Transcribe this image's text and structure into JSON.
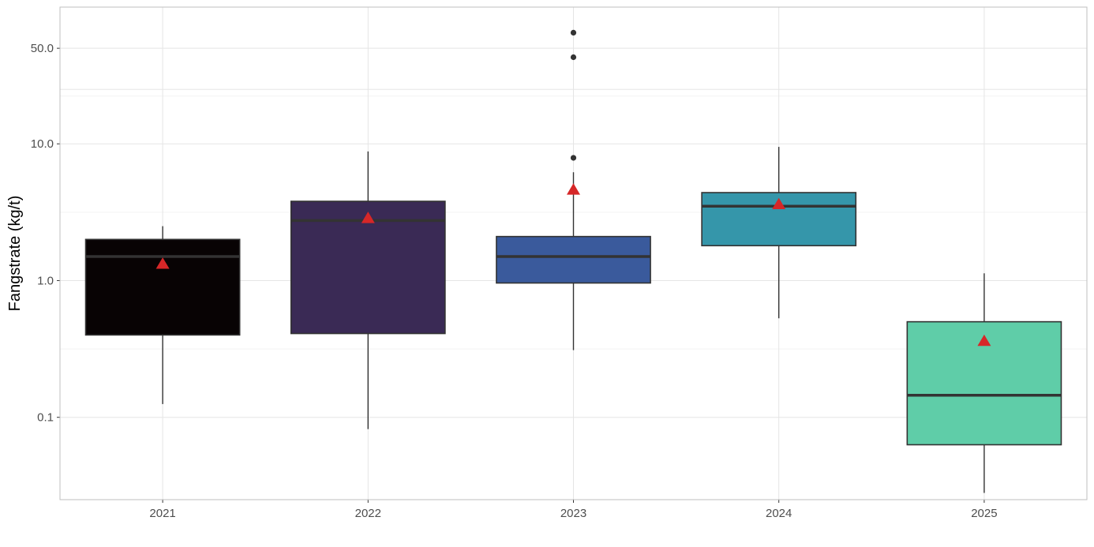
{
  "chart_data": {
    "type": "boxplot",
    "title": "",
    "xlabel": "",
    "ylabel": "Fangstrate (kg/t)",
    "y_scale": "log10",
    "ylim": [
      0.025,
      100
    ],
    "y_ticks": [
      0.1,
      1.0,
      10.0,
      50.0
    ],
    "y_tick_labels": [
      "0.1",
      "1.0",
      "10.0",
      "50.0"
    ],
    "grid": true,
    "legend": "none",
    "categories": [
      "2021",
      "2022",
      "2023",
      "2024",
      "2025"
    ],
    "boxes": [
      {
        "category": "2021",
        "fill": "#080304",
        "whisker_low": 0.125,
        "q1": 0.4,
        "median": 1.5,
        "q3": 2.0,
        "whisker_high": 2.5,
        "mean": 1.32,
        "outliers": []
      },
      {
        "category": "2022",
        "fill": "#3a2a55",
        "whisker_low": 0.082,
        "q1": 0.41,
        "median": 2.75,
        "q3": 3.8,
        "whisker_high": 8.8,
        "mean": 2.85,
        "outliers": []
      },
      {
        "category": "2023",
        "fill": "#3a5a9c",
        "whisker_low": 0.31,
        "q1": 0.96,
        "median": 1.5,
        "q3": 2.1,
        "whisker_high": 6.2,
        "mean": 4.6,
        "outliers": [
          7.9,
          43.0,
          65.0
        ]
      },
      {
        "category": "2024",
        "fill": "#3596aa",
        "whisker_low": 0.53,
        "q1": 1.8,
        "median": 3.5,
        "q3": 4.4,
        "whisker_high": 9.5,
        "mean": 3.6,
        "outliers": []
      },
      {
        "category": "2025",
        "fill": "#5fcda8",
        "whisker_low": 0.028,
        "q1": 0.063,
        "median": 0.145,
        "q3": 0.5,
        "whisker_high": 1.13,
        "mean": 0.36,
        "outliers": []
      }
    ],
    "colors": {
      "mean_marker": "#d62728",
      "box_border": "#333333",
      "grid_major": "#e5e5e5",
      "grid_minor": "#f3f3f3",
      "panel_border": "#bfbfbf"
    }
  }
}
